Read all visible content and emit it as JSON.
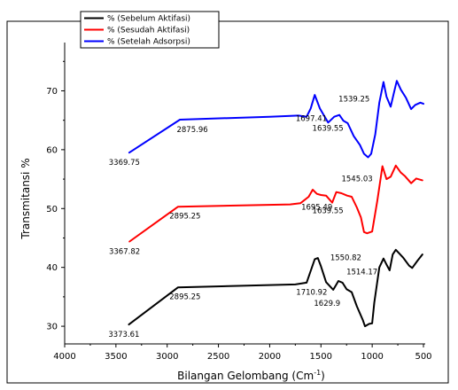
{
  "chart_data": {
    "type": "line",
    "title": "",
    "xlabel": "Bilangan Gelombang (Cm",
    "xlabel_superscript": "-1",
    "xlabel_suffix": ")",
    "ylabel": "Transmitansi %",
    "xlim": [
      4000,
      500
    ],
    "x_reversed": true,
    "ylim": [
      27,
      77
    ],
    "x_ticks": [
      4000,
      3500,
      3000,
      2500,
      2000,
      1500,
      1000,
      500
    ],
    "x_tick_labels": [
      "4000",
      "3500",
      "3000",
      "2500",
      "2000",
      "1500",
      "1000",
      "500"
    ],
    "y_ticks": [
      30,
      40,
      50,
      60,
      70
    ],
    "y_tick_labels": [
      "30",
      "40",
      "50",
      "60",
      "70"
    ],
    "grid": false,
    "legend_position": "top-left",
    "series": [
      {
        "name": "% (Sebelum Aktifasi)",
        "color": "#000000",
        "points": [
          [
            3373.61,
            30.3
          ],
          [
            2895.25,
            36.6
          ],
          [
            1750,
            37.1
          ],
          [
            1640,
            37.4
          ],
          [
            1560,
            41.4
          ],
          [
            1530,
            41.6
          ],
          [
            1500,
            40.2
          ],
          [
            1450,
            37.5
          ],
          [
            1380,
            36.2
          ],
          [
            1329.9,
            37.7
          ],
          [
            1290,
            37.4
          ],
          [
            1250,
            36.3
          ],
          [
            1200,
            35.8
          ],
          [
            1150,
            33.4
          ],
          [
            1090,
            31.0
          ],
          [
            1070,
            30.0
          ],
          [
            1030,
            30.4
          ],
          [
            1000,
            30.5
          ],
          [
            980,
            34.0
          ],
          [
            930,
            40.0
          ],
          [
            890,
            41.5
          ],
          [
            860,
            40.5
          ],
          [
            830,
            39.5
          ],
          [
            800,
            42.2
          ],
          [
            770,
            43.0
          ],
          [
            700,
            41.7
          ],
          [
            640,
            40.3
          ],
          [
            610,
            39.9
          ],
          [
            560,
            41.1
          ],
          [
            510,
            42.2
          ]
        ]
      },
      {
        "name": "% (Sesudah Aktifasi)",
        "color": "#ff0000",
        "points": [
          [
            3367.82,
            44.4
          ],
          [
            2895.25,
            50.3
          ],
          [
            1800,
            50.7
          ],
          [
            1700,
            50.9
          ],
          [
            1620,
            52.0
          ],
          [
            1580,
            53.2
          ],
          [
            1540,
            52.5
          ],
          [
            1500,
            52.3
          ],
          [
            1450,
            52.2
          ],
          [
            1390,
            51.0
          ],
          [
            1350,
            52.8
          ],
          [
            1300,
            52.6
          ],
          [
            1245.03,
            52.2
          ],
          [
            1200,
            52.0
          ],
          [
            1150,
            50.2
          ],
          [
            1110,
            48.5
          ],
          [
            1080,
            46.0
          ],
          [
            1050,
            45.8
          ],
          [
            1000,
            46.1
          ],
          [
            950,
            51.3
          ],
          [
            900,
            57.2
          ],
          [
            860,
            55.0
          ],
          [
            820,
            55.4
          ],
          [
            770,
            57.3
          ],
          [
            720,
            56.1
          ],
          [
            680,
            55.5
          ],
          [
            620,
            54.3
          ],
          [
            570,
            55.1
          ],
          [
            510,
            54.8
          ]
        ]
      },
      {
        "name": "% (Setelah Adsorpsi)",
        "color": "#0000ff",
        "points": [
          [
            3369.75,
            59.5
          ],
          [
            2875.96,
            65.1
          ],
          [
            2000,
            65.6
          ],
          [
            1720,
            65.8
          ],
          [
            1640,
            65.6
          ],
          [
            1600,
            67.0
          ],
          [
            1560,
            69.3
          ],
          [
            1510,
            67.0
          ],
          [
            1430,
            64.6
          ],
          [
            1370,
            65.6
          ],
          [
            1320,
            65.9
          ],
          [
            1280,
            64.9
          ],
          [
            1239.25,
            64.5
          ],
          [
            1180,
            62.3
          ],
          [
            1120,
            60.8
          ],
          [
            1080,
            59.3
          ],
          [
            1040,
            58.7
          ],
          [
            1010,
            59.3
          ],
          [
            970,
            62.6
          ],
          [
            930,
            68.0
          ],
          [
            890,
            71.5
          ],
          [
            860,
            69.0
          ],
          [
            820,
            67.3
          ],
          [
            790,
            69.5
          ],
          [
            760,
            71.7
          ],
          [
            720,
            70.2
          ],
          [
            670,
            68.8
          ],
          [
            620,
            66.9
          ],
          [
            580,
            67.6
          ],
          [
            530,
            68.0
          ],
          [
            500,
            67.8
          ]
        ]
      }
    ],
    "annotations": [
      {
        "text": "3373.61",
        "x": 3373.61,
        "y": 30.3
      },
      {
        "text": "2895.25",
        "x": 2895.25,
        "y": 36.6
      },
      {
        "text": "1710.92",
        "x": 1710.92,
        "y": 37.2
      },
      {
        "text": "1550.82",
        "x": 1550.82,
        "y": 41.4
      },
      {
        "text": "1514.17",
        "x": 1514.17,
        "y": 40.0
      },
      {
        "text": "1629.9",
        "x": 1629.9,
        "y": 37.4
      },
      {
        "text": "3367.82",
        "x": 3367.82,
        "y": 44.4
      },
      {
        "text": "2895.25",
        "x": 2895.25,
        "y": 50.3
      },
      {
        "text": "1695.49",
        "x": 1695.49,
        "y": 50.9
      },
      {
        "text": "1639.55",
        "x": 1639.55,
        "y": 51.5
      },
      {
        "text": "1545.03",
        "x": 1545.03,
        "y": 52.5
      },
      {
        "text": "3369.75",
        "x": 3369.75,
        "y": 59.5
      },
      {
        "text": "2875.96",
        "x": 2875.96,
        "y": 65.1
      },
      {
        "text": "1697.41",
        "x": 1697.41,
        "y": 65.8
      },
      {
        "text": "1639.55",
        "x": 1639.55,
        "y": 65.6
      },
      {
        "text": "1539.25",
        "x": 1539.25,
        "y": 67.0
      }
    ]
  }
}
